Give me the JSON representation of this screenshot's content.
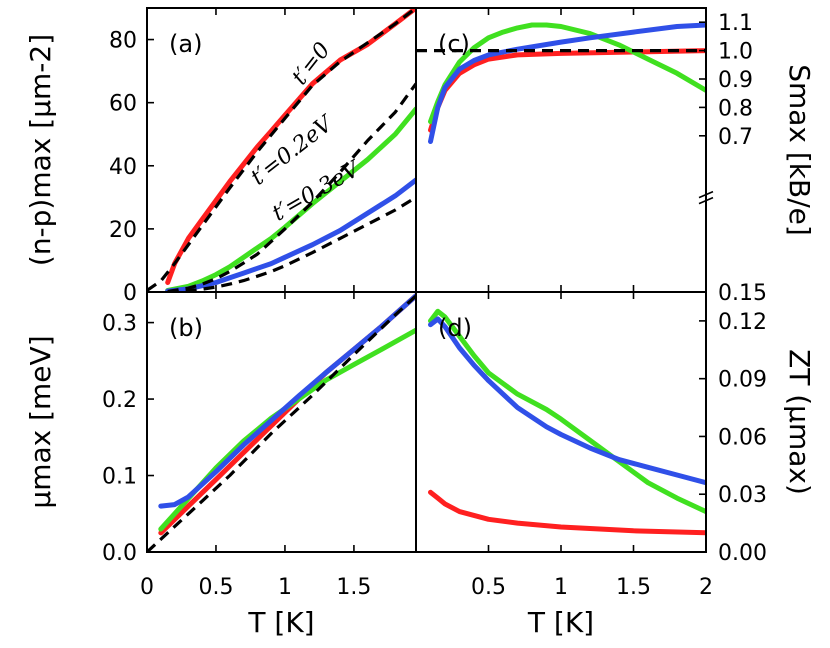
{
  "chart_data": [
    {
      "panel_label": "(a)",
      "type": "line",
      "ylabel": "(n-p)max [μm-2]",
      "xlabel": "",
      "xlim": [
        0,
        1.95
      ],
      "ylim": [
        0,
        90
      ],
      "xticks": [
        "0",
        "0.5",
        "1",
        "1.5"
      ],
      "xtick_values": [
        0,
        0.5,
        1,
        1.5
      ],
      "xticks_shown": false,
      "yticks": [
        "0",
        "20",
        "40",
        "60",
        "80"
      ],
      "ytick_values": [
        0,
        20,
        40,
        60,
        80
      ],
      "annotations": [
        {
          "text": "t′=0",
          "x": 1.23,
          "y": 71,
          "rotate": -52
        },
        {
          "text": "t′=0.2eV",
          "x": 1.08,
          "y": 43,
          "rotate": -38
        },
        {
          "text": "t′=0.3eV",
          "x": 1.25,
          "y": 30,
          "rotate": -30
        }
      ],
      "series": [
        {
          "color": "#ff2020",
          "style": "solid",
          "x": [
            0.15,
            0.2,
            0.3,
            0.4,
            0.5,
            0.6,
            0.7,
            0.8,
            0.9,
            1.0,
            1.2,
            1.4,
            1.6,
            1.8,
            1.95
          ],
          "y": [
            3,
            9,
            17,
            23,
            29,
            35,
            40.5,
            46,
            51,
            56,
            66,
            73.5,
            78.5,
            85,
            90
          ]
        },
        {
          "color": "#40e020",
          "style": "solid",
          "x": [
            0.15,
            0.3,
            0.4,
            0.5,
            0.6,
            0.7,
            0.8,
            0.9,
            1.0,
            1.2,
            1.4,
            1.6,
            1.8,
            1.95
          ],
          "y": [
            0.5,
            1.8,
            3.5,
            5.5,
            8,
            11,
            14,
            17,
            20.5,
            28,
            35,
            42,
            50,
            58
          ]
        },
        {
          "color": "#3050e8",
          "style": "solid",
          "x": [
            0.15,
            0.3,
            0.4,
            0.5,
            0.6,
            0.7,
            0.8,
            0.9,
            1.0,
            1.2,
            1.4,
            1.6,
            1.8,
            1.95
          ],
          "y": [
            0.3,
            1,
            2,
            3,
            4.5,
            6,
            7.5,
            9,
            11,
            15,
            19.5,
            25,
            30.5,
            35.5
          ]
        },
        {
          "color": "#000000",
          "style": "dashed",
          "x": [
            0.0,
            0.1,
            0.2,
            0.4,
            0.6,
            0.8,
            1.0,
            1.2,
            1.4,
            1.6,
            1.8,
            1.95
          ],
          "y": [
            0.5,
            3.5,
            9,
            21,
            33,
            44.5,
            55,
            65.5,
            73,
            79,
            85,
            90
          ]
        },
        {
          "color": "#000000",
          "style": "dashed",
          "x": [
            0.15,
            0.3,
            0.4,
            0.5,
            0.6,
            0.7,
            0.8,
            0.9,
            1.0,
            1.2,
            1.4,
            1.6,
            1.8,
            1.95
          ],
          "y": [
            0.2,
            1.2,
            2.5,
            4.2,
            6.5,
            9.2,
            12,
            16,
            20,
            28.5,
            38,
            48,
            57,
            66
          ]
        },
        {
          "color": "#000000",
          "style": "dashed",
          "x": [
            0.15,
            0.3,
            0.4,
            0.5,
            0.6,
            0.7,
            0.8,
            0.9,
            1.0,
            1.2,
            1.4,
            1.6,
            1.8,
            1.95
          ],
          "y": [
            0,
            0.4,
            0.9,
            1.6,
            2.5,
            3.6,
            5,
            6.5,
            8.3,
            12.5,
            17,
            21.5,
            26,
            30
          ]
        }
      ]
    },
    {
      "panel_label": "(b)",
      "type": "line",
      "ylabel": "μmax [meV]",
      "xlabel": "T [K]",
      "xlim": [
        0,
        1.95
      ],
      "ylim": [
        0,
        0.34
      ],
      "xticks": [
        "0",
        "0.5",
        "1",
        "1.5"
      ],
      "xtick_values": [
        0,
        0.5,
        1,
        1.5
      ],
      "xticks_shown": true,
      "yticks": [
        "0.0",
        "0.1",
        "0.2",
        "0.3"
      ],
      "ytick_values": [
        0,
        0.1,
        0.2,
        0.3
      ],
      "series": [
        {
          "color": "#ff2020",
          "style": "solid",
          "x": [
            0.1,
            0.3,
            0.5,
            0.7,
            0.9,
            1.1,
            1.3,
            1.5,
            1.7,
            1.95
          ],
          "y": [
            0.025,
            0.06,
            0.095,
            0.13,
            0.165,
            0.2,
            0.235,
            0.265,
            0.295,
            0.335
          ]
        },
        {
          "color": "#40e020",
          "style": "solid",
          "x": [
            0.1,
            0.3,
            0.5,
            0.7,
            0.9,
            1.1,
            1.3,
            1.5,
            1.7,
            1.95
          ],
          "y": [
            0.03,
            0.07,
            0.11,
            0.145,
            0.175,
            0.2,
            0.225,
            0.245,
            0.265,
            0.29
          ]
        },
        {
          "color": "#3050e8",
          "style": "solid",
          "x": [
            0.1,
            0.2,
            0.3,
            0.5,
            0.7,
            0.9,
            1.1,
            1.3,
            1.5,
            1.7,
            1.95
          ],
          "y": [
            0.06,
            0.062,
            0.072,
            0.105,
            0.14,
            0.172,
            0.204,
            0.235,
            0.265,
            0.295,
            0.335
          ]
        },
        {
          "color": "#000000",
          "style": "dashed",
          "x": [
            0.0,
            0.3,
            0.6,
            0.9,
            1.2,
            1.5,
            1.8,
            1.95
          ],
          "y": [
            0.0,
            0.05,
            0.1,
            0.155,
            0.205,
            0.258,
            0.31,
            0.335
          ]
        }
      ]
    },
    {
      "panel_label": "(c)",
      "type": "line",
      "ylabel": "Smax [kB/e]",
      "xlabel": "",
      "xlim": [
        0,
        2
      ],
      "ylim": [
        0.15,
        1.15
      ],
      "xticks": [
        "0.5",
        "1",
        "1.5",
        "2"
      ],
      "xtick_values": [
        0.5,
        1,
        1.5,
        2
      ],
      "xticks_shown": false,
      "yticks": [
        "0.15",
        "0.7",
        "0.8",
        "0.9",
        "1.0",
        "1.1"
      ],
      "ytick_values": [
        0.15,
        0.7,
        0.8,
        0.9,
        1.0,
        1.1
      ],
      "yaxis_broken": true,
      "series": [
        {
          "color": "#ff2020",
          "style": "solid",
          "x": [
            0.1,
            0.15,
            0.2,
            0.3,
            0.4,
            0.5,
            0.7,
            1.0,
            1.5,
            2.0
          ],
          "y": [
            0.72,
            0.8,
            0.86,
            0.92,
            0.95,
            0.97,
            0.985,
            0.99,
            0.995,
            1.0
          ]
        },
        {
          "color": "#40e020",
          "style": "solid",
          "x": [
            0.1,
            0.15,
            0.2,
            0.3,
            0.4,
            0.5,
            0.6,
            0.7,
            0.8,
            0.9,
            1.0,
            1.2,
            1.4,
            1.6,
            1.8,
            2.0
          ],
          "y": [
            0.75,
            0.82,
            0.88,
            0.96,
            1.01,
            1.045,
            1.065,
            1.08,
            1.09,
            1.09,
            1.085,
            1.06,
            1.02,
            0.97,
            0.92,
            0.86
          ]
        },
        {
          "color": "#3050e8",
          "style": "solid",
          "x": [
            0.1,
            0.15,
            0.2,
            0.3,
            0.4,
            0.5,
            0.7,
            1.0,
            1.2,
            1.5,
            1.8,
            2.0
          ],
          "y": [
            0.68,
            0.8,
            0.87,
            0.935,
            0.965,
            0.985,
            1.005,
            1.03,
            1.045,
            1.065,
            1.085,
            1.09
          ]
        },
        {
          "color": "#000000",
          "style": "dashed",
          "x": [
            0.0,
            2.0
          ],
          "y": [
            1.0,
            1.0
          ]
        }
      ]
    },
    {
      "panel_label": "(d)",
      "type": "line",
      "ylabel": "ZT (μmax)",
      "xlabel": "T [K]",
      "xlim": [
        0,
        2
      ],
      "ylim": [
        0,
        0.135
      ],
      "xticks": [
        "0.5",
        "1",
        "1.5",
        "2"
      ],
      "xtick_values": [
        0.5,
        1,
        1.5,
        2
      ],
      "xticks_shown": true,
      "yticks": [
        "0.00",
        "0.03",
        "0.06",
        "0.09",
        "0.12"
      ],
      "ytick_values": [
        0,
        0.03,
        0.06,
        0.09,
        0.12
      ],
      "series": [
        {
          "color": "#ff2020",
          "style": "solid",
          "x": [
            0.1,
            0.15,
            0.2,
            0.3,
            0.5,
            0.7,
            1.0,
            1.5,
            2.0
          ],
          "y": [
            0.031,
            0.028,
            0.025,
            0.021,
            0.017,
            0.015,
            0.013,
            0.011,
            0.01
          ]
        },
        {
          "color": "#40e020",
          "style": "solid",
          "x": [
            0.1,
            0.15,
            0.2,
            0.3,
            0.4,
            0.5,
            0.7,
            0.9,
            1.0,
            1.2,
            1.4,
            1.6,
            1.8,
            2.0
          ],
          "y": [
            0.12,
            0.125,
            0.122,
            0.112,
            0.102,
            0.093,
            0.082,
            0.074,
            0.069,
            0.058,
            0.047,
            0.036,
            0.028,
            0.021
          ]
        },
        {
          "color": "#3050e8",
          "style": "solid",
          "x": [
            0.1,
            0.15,
            0.2,
            0.3,
            0.4,
            0.5,
            0.7,
            0.9,
            1.0,
            1.2,
            1.4,
            1.6,
            1.8,
            2.0
          ],
          "y": [
            0.118,
            0.121,
            0.117,
            0.106,
            0.097,
            0.089,
            0.075,
            0.065,
            0.061,
            0.054,
            0.048,
            0.044,
            0.04,
            0.036
          ]
        }
      ]
    }
  ]
}
